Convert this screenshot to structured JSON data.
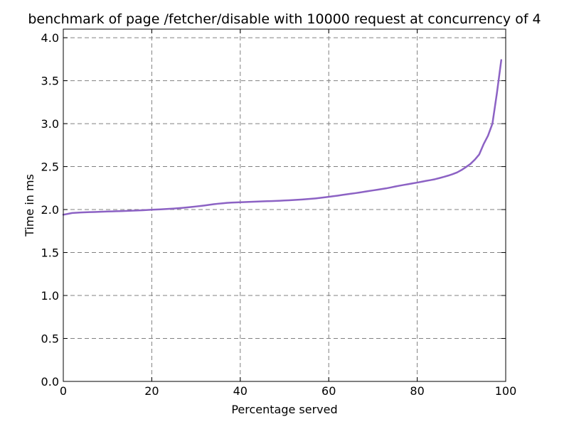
{
  "chart_data": {
    "type": "line",
    "title": "benchmark of page /fetcher/disable with 10000 request at concurrency of 4",
    "xlabel": "Percentage served",
    "ylabel": "Time in ms",
    "xlim": [
      0,
      100
    ],
    "ylim": [
      0,
      4.1
    ],
    "xticks": [
      0,
      20,
      40,
      60,
      80,
      100
    ],
    "xtick_labels": [
      "0",
      "20",
      "40",
      "60",
      "80",
      "100"
    ],
    "yticks": [
      0,
      0.5,
      1.0,
      1.5,
      2.0,
      2.5,
      3.0,
      3.5,
      4.0
    ],
    "ytick_labels": [
      "0.0",
      "0.5",
      "1.0",
      "1.5",
      "2.0",
      "2.5",
      "3.0",
      "3.5",
      "4.0"
    ],
    "grid": true,
    "line_color": "#8c62c4",
    "series": [
      {
        "x": [
          0,
          1,
          2,
          3,
          4,
          5,
          6,
          7,
          8,
          9,
          10,
          11,
          12,
          13,
          14,
          15,
          16,
          17,
          18,
          19,
          20,
          21,
          22,
          23,
          24,
          25,
          26,
          27,
          28,
          29,
          30,
          31,
          32,
          33,
          34,
          35,
          36,
          37,
          38,
          39,
          40,
          41,
          42,
          43,
          44,
          45,
          46,
          47,
          48,
          49,
          50,
          51,
          52,
          53,
          54,
          55,
          56,
          57,
          58,
          59,
          60,
          61,
          62,
          63,
          64,
          65,
          66,
          67,
          68,
          69,
          70,
          71,
          72,
          73,
          74,
          75,
          76,
          77,
          78,
          79,
          80,
          81,
          82,
          83,
          84,
          85,
          86,
          87,
          88,
          89,
          90,
          91,
          92,
          93,
          94,
          95,
          96,
          97,
          98,
          99
        ],
        "values": [
          1.94,
          1.95,
          1.96,
          1.963,
          1.966,
          1.968,
          1.97,
          1.972,
          1.974,
          1.976,
          1.978,
          1.979,
          1.981,
          1.982,
          1.984,
          1.986,
          1.988,
          1.99,
          1.992,
          1.995,
          1.998,
          2.0,
          2.003,
          2.006,
          2.009,
          2.012,
          2.016,
          2.02,
          2.025,
          2.03,
          2.036,
          2.042,
          2.048,
          2.055,
          2.062,
          2.068,
          2.073,
          2.078,
          2.081,
          2.083,
          2.085,
          2.087,
          2.089,
          2.091,
          2.093,
          2.095,
          2.097,
          2.099,
          2.101,
          2.103,
          2.106,
          2.108,
          2.111,
          2.114,
          2.117,
          2.121,
          2.125,
          2.13,
          2.136,
          2.142,
          2.148,
          2.155,
          2.162,
          2.17,
          2.177,
          2.184,
          2.191,
          2.199,
          2.207,
          2.215,
          2.223,
          2.231,
          2.239,
          2.247,
          2.257,
          2.268,
          2.278,
          2.287,
          2.296,
          2.305,
          2.314,
          2.324,
          2.334,
          2.343,
          2.353,
          2.366,
          2.38,
          2.395,
          2.412,
          2.432,
          2.46,
          2.494,
          2.53,
          2.58,
          2.64,
          2.76,
          2.86,
          3.0,
          3.35,
          3.74
        ]
      }
    ]
  }
}
